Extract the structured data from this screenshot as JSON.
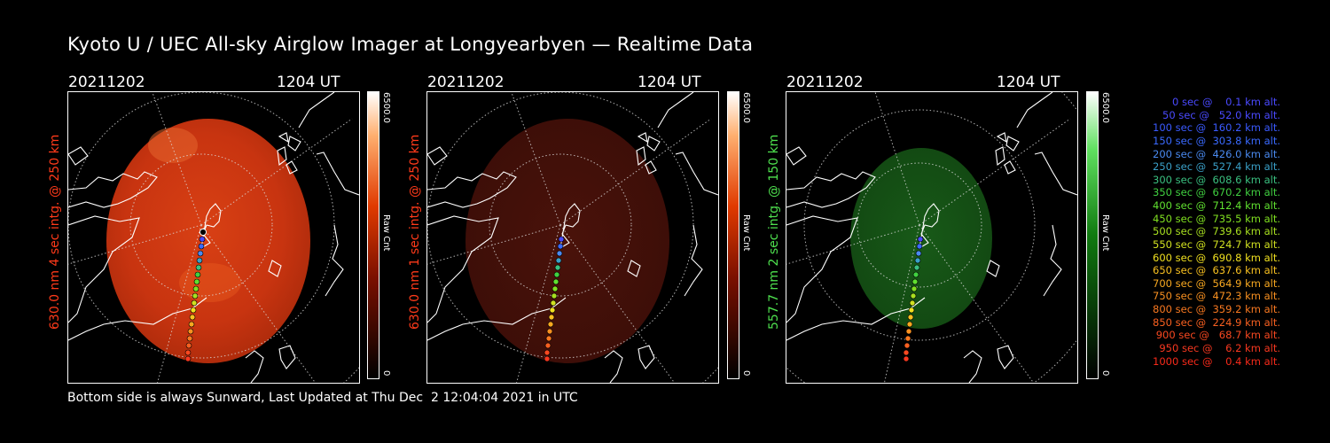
{
  "title": "Kyoto U / UEC All-sky Airglow Imager at Longyearbyen — Realtime Data",
  "footer": "Bottom side is always Sunward, Last Updated at Thu Dec  2 12:04:04 2021 in UTC",
  "panels": [
    {
      "date": "20211202",
      "time": "1204 UT",
      "side_label": "630.0 nm 4 sec intg. @ 250 km",
      "label_color": "#ff3a1a",
      "cbar_max": "6500.0",
      "cbar_min": "0",
      "cbar_unit": "Raw Cnt"
    },
    {
      "date": "20211202",
      "time": "1204 UT",
      "side_label": "630.0 nm 1 sec intg. @ 250 km",
      "label_color": "#ff3a1a",
      "cbar_max": "6500.0",
      "cbar_min": "0",
      "cbar_unit": "Raw Cnt"
    },
    {
      "date": "20211202",
      "time": "1204 UT",
      "side_label": "557.7 nm 2 sec intg. @ 150 km",
      "label_color": "#4ee04e",
      "cbar_max": "6500.0",
      "cbar_min": "0",
      "cbar_unit": "Raw Cnt"
    }
  ],
  "legend": [
    {
      "text": "0 sec @    0.1 km alt.",
      "color": "#4a4aff"
    },
    {
      "text": "50 sec @   52.0 km alt.",
      "color": "#4a4aff"
    },
    {
      "text": "100 sec @  160.2 km alt.",
      "color": "#3a5aff"
    },
    {
      "text": "150 sec @  303.8 km alt.",
      "color": "#3a6aff"
    },
    {
      "text": "200 sec @  426.0 km alt.",
      "color": "#4a8af0"
    },
    {
      "text": "250 sec @  527.4 km alt.",
      "color": "#3aa0c8"
    },
    {
      "text": "300 sec @  608.6 km alt.",
      "color": "#3ac080"
    },
    {
      "text": "350 sec @  670.2 km alt.",
      "color": "#40d040"
    },
    {
      "text": "400 sec @  712.4 km alt.",
      "color": "#60e030"
    },
    {
      "text": "450 sec @  735.5 km alt.",
      "color": "#80e020"
    },
    {
      "text": "500 sec @  739.6 km alt.",
      "color": "#a8e020"
    },
    {
      "text": "550 sec @  724.7 km alt.",
      "color": "#d0e020"
    },
    {
      "text": "600 sec @  690.8 km alt.",
      "color": "#f0e020"
    },
    {
      "text": "650 sec @  637.6 km alt.",
      "color": "#f8c020"
    },
    {
      "text": "700 sec @  564.9 km alt.",
      "color": "#f8a820"
    },
    {
      "text": "750 sec @  472.3 km alt.",
      "color": "#f89020"
    },
    {
      "text": "800 sec @  359.2 km alt.",
      "color": "#f87820"
    },
    {
      "text": "850 sec @  224.9 km alt.",
      "color": "#f86020"
    },
    {
      "text": "900 sec @   68.7 km alt.",
      "color": "#f84820"
    },
    {
      "text": "950 sec @    6.2 km alt.",
      "color": "#f83820"
    },
    {
      "text": "1000 sec @    0.4 km alt.",
      "color": "#f82a1a"
    }
  ]
}
